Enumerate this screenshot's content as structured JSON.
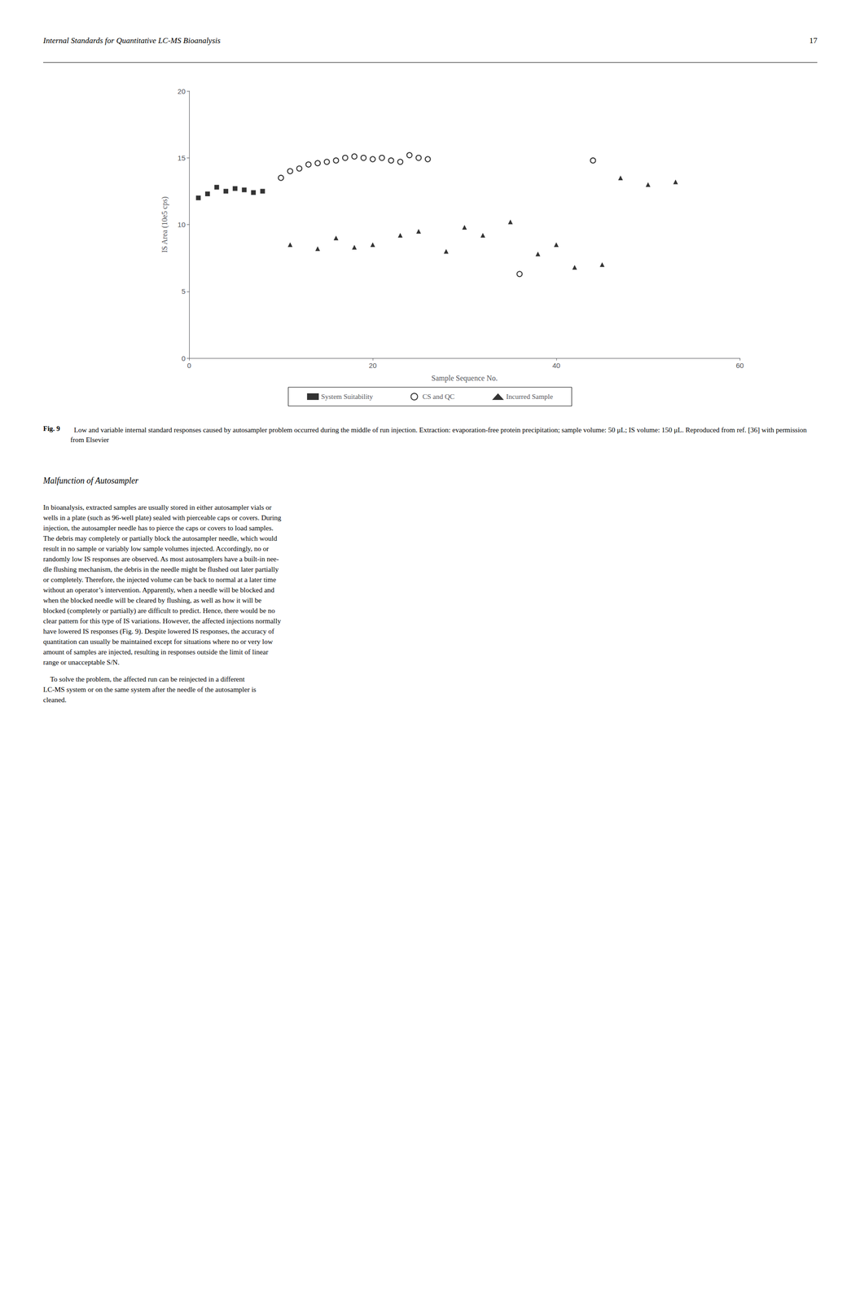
{
  "chart_data": {
    "type": "scatter",
    "xlabel": "Sample Sequence No.",
    "ylabel": "IS Area (10e5 cps)",
    "xlim": [
      0,
      60
    ],
    "ylim": [
      0,
      20
    ],
    "xticks": [
      0,
      20,
      40,
      60
    ],
    "yticks": [
      0,
      5,
      10,
      15,
      20
    ],
    "grid": false,
    "legend": "bottom",
    "series": [
      {
        "name": "System Suitability",
        "color": "#000000",
        "marker": "rect",
        "x": [
          1,
          2,
          3,
          4,
          5,
          6,
          7,
          8
        ],
        "values": [
          12.0,
          12.3,
          12.8,
          12.5,
          12.7,
          12.6,
          12.4,
          12.5
        ]
      },
      {
        "name": "CS and QC",
        "color": "#000000",
        "marker": "emptyCircle",
        "x": [
          10,
          11,
          12,
          13,
          14,
          15,
          16,
          17,
          18,
          19,
          20,
          21,
          22,
          23,
          24,
          25,
          26,
          36,
          44
        ],
        "values": [
          13.5,
          14.0,
          14.2,
          14.5,
          14.6,
          14.7,
          14.8,
          15.0,
          15.1,
          15.0,
          14.9,
          15.0,
          14.8,
          14.7,
          15.2,
          15.0,
          14.9,
          6.3,
          14.8
        ]
      },
      {
        "name": "Incurred Sample",
        "color": "#000000",
        "marker": "triangle",
        "x": [
          11,
          14,
          16,
          18,
          20,
          23,
          25,
          28,
          30,
          32,
          35,
          38,
          40,
          42,
          45,
          47,
          50,
          53
        ],
        "values": [
          8.5,
          8.2,
          9.0,
          8.3,
          8.5,
          9.2,
          9.5,
          8.0,
          9.8,
          9.2,
          10.2,
          7.8,
          8.5,
          6.8,
          7.0,
          13.5,
          13.0,
          13.2
        ]
      }
    ],
    "annotations": [
      "Internal Standards for Quantitative LC-MS Bioanalysis",
      "17",
      "Fig. 9",
      "  Low and variable internal standard responses caused by autosampler problem occurred during the middle of run injection. Extraction: evaporation-free protein precipitation; sample volume: 50 μL; IS volume: 150 μL. Reproduced from ref. [36] with permission from Elsevier",
      "Malfunction of Autosampler",
      "In bioanalysis, extracted samples are usually stored in either autosampler vials or\nwells in a plate (such as 96-well plate) sealed with pierceable caps or covers. During\ninjection, the autosampler needle has to pierce the caps or covers to load samples.\nThe debris may completely or partially block the autosampler needle, which would\nresult in no sample or variably low sample volumes injected. Accordingly, no or\nrandomly low IS responses are observed. As most autosamplers have a built-in nee-\ndle flushing mechanism, the debris in the needle might be flushed out later partially\nor completely. Therefore, the injected volume can be back to normal at a later time\nwithout an operator’s intervention. Apparently, when a needle will be blocked and\nwhen the blocked needle will be cleared by flushing, as well as how it will be\nblocked (completely or partially) are difficult to predict. Hence, there would be no\nclear pattern for this type of IS variations. However, the affected injections normally\nhave lowered IS responses (Fig. 9). Despite lowered IS responses, the accuracy of\nquantitation can usually be maintained except for situations where no or very low\namount of samples are injected, resulting in responses outside the limit of linear\nrange or unacceptable S/N.",
      "    To solve the problem, the affected run can be reinjected in a different\nLC-MS system or on the same system after the needle of the autosampler is\ncleaned."
    ]
  }
}
